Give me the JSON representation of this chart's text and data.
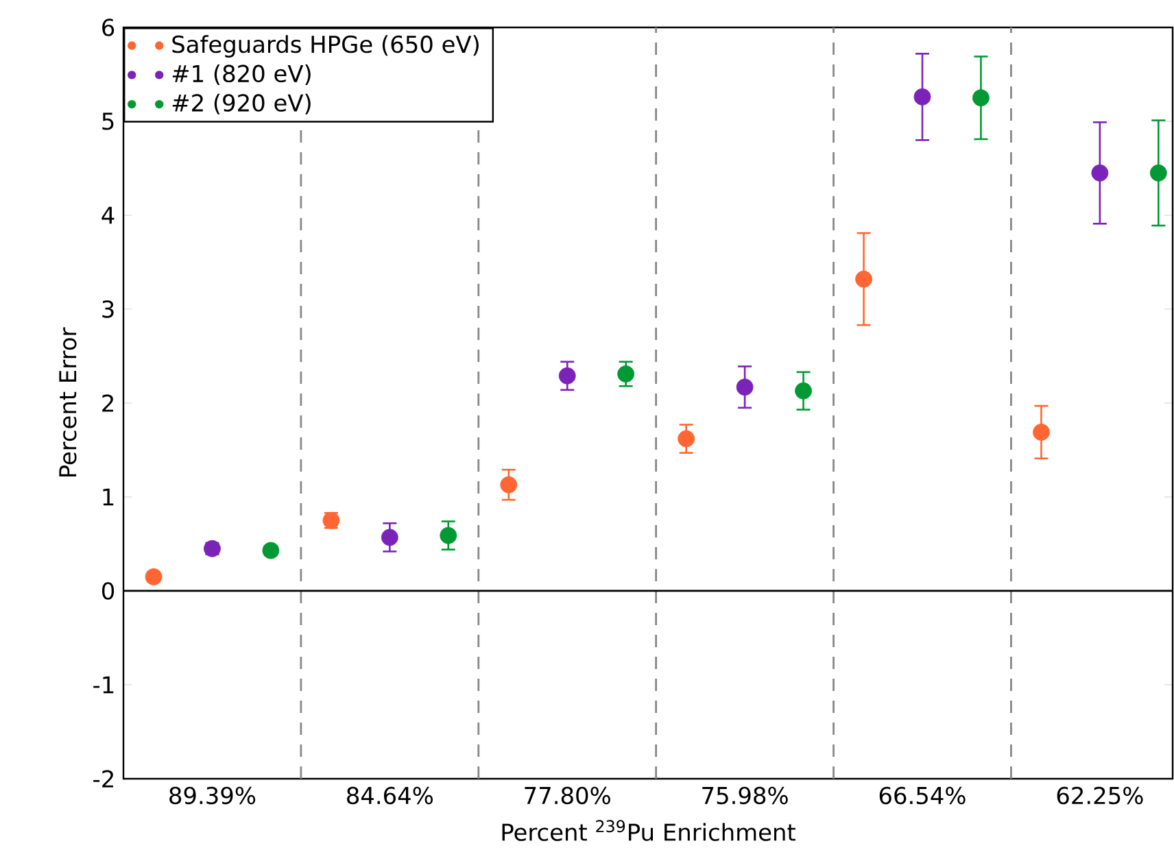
{
  "chart_data": {
    "type": "scatter",
    "categories": [
      "89.39%",
      "84.64%",
      "77.80%",
      "75.98%",
      "66.54%",
      "62.25%"
    ],
    "xlabel": "Percent $^{239}$Pu Enrichment",
    "ylabel": "Percent Error",
    "ylim": [
      -2,
      6
    ],
    "yticks": [
      -2,
      -1,
      0,
      1,
      2,
      3,
      4,
      5,
      6
    ],
    "series": [
      {
        "name": "Safeguards HPGe (650 eV)",
        "color": "#ff6633",
        "values": [
          0.15,
          0.75,
          1.13,
          1.62,
          3.32,
          1.69
        ],
        "errors": [
          0.05,
          0.08,
          0.16,
          0.15,
          0.49,
          0.28
        ]
      },
      {
        "name": "#1 (820 eV)",
        "color": "#7b22b8",
        "values": [
          0.45,
          0.57,
          2.29,
          2.17,
          5.26,
          4.45
        ],
        "errors": [
          0.06,
          0.15,
          0.15,
          0.22,
          0.46,
          0.54
        ]
      },
      {
        "name": "#2 (920 eV)",
        "color": "#009933",
        "values": [
          0.43,
          0.59,
          2.31,
          2.13,
          5.25,
          4.45
        ],
        "errors": [
          0.05,
          0.15,
          0.13,
          0.2,
          0.44,
          0.56
        ]
      }
    ],
    "ref_lines": [
      {
        "axis": "y",
        "value": 0,
        "line_style": "solid",
        "color": "#000000"
      }
    ],
    "marker": "circle",
    "grid": false,
    "legend": "top left"
  }
}
